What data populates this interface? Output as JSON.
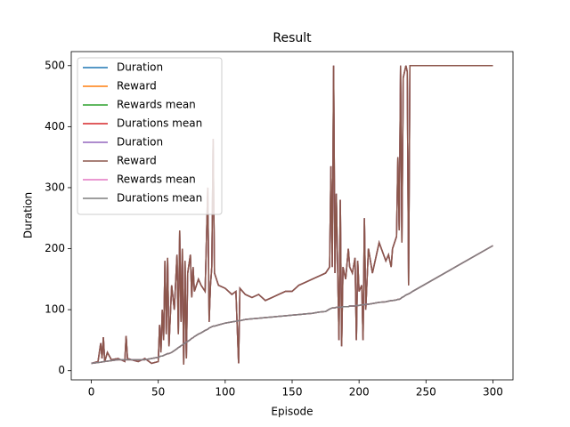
{
  "chart_data": {
    "type": "line",
    "title": "Result",
    "x_label": "Episode",
    "y_label": "Duration",
    "x": [
      0,
      5,
      7,
      8,
      9,
      10,
      12,
      15,
      20,
      25,
      26,
      27,
      30,
      35,
      40,
      45,
      50,
      51,
      52,
      53,
      54,
      55,
      56,
      57,
      58,
      60,
      62,
      64,
      65,
      66,
      67,
      68,
      69,
      70,
      71,
      72,
      74,
      75,
      76,
      77,
      80,
      82,
      85,
      87,
      88,
      89,
      90,
      91,
      92,
      95,
      100,
      105,
      108,
      110,
      111,
      115,
      120,
      125,
      130,
      135,
      140,
      145,
      150,
      155,
      160,
      165,
      170,
      175,
      178,
      179,
      180,
      181,
      182,
      183,
      184,
      185,
      186,
      187,
      188,
      190,
      192,
      193,
      195,
      197,
      198,
      199,
      200,
      202,
      203,
      204,
      205,
      207,
      210,
      215,
      220,
      222,
      224,
      225,
      228,
      229,
      230,
      231,
      232,
      233,
      235,
      236,
      237,
      238,
      240,
      300
    ],
    "series": [
      {
        "name": "Duration",
        "color": "#1f77b4",
        "values": [
          12,
          15,
          45,
          20,
          55,
          15,
          30,
          18,
          20,
          15,
          57,
          20,
          18,
          15,
          20,
          12,
          15,
          75,
          30,
          100,
          50,
          180,
          60,
          185,
          40,
          140,
          100,
          190,
          60,
          230,
          80,
          200,
          10,
          180,
          20,
          160,
          190,
          120,
          170,
          130,
          150,
          140,
          130,
          300,
          80,
          140,
          170,
          380,
          160,
          140,
          135,
          125,
          130,
          12,
          135,
          125,
          120,
          125,
          115,
          120,
          125,
          130,
          130,
          140,
          145,
          150,
          155,
          160,
          170,
          335,
          170,
          500,
          160,
          290,
          170,
          50,
          280,
          40,
          170,
          150,
          200,
          170,
          160,
          185,
          50,
          180,
          130,
          140,
          50,
          250,
          100,
          200,
          160,
          210,
          180,
          190,
          170,
          200,
          220,
          350,
          230,
          500,
          210,
          480,
          500,
          490,
          140,
          500,
          500,
          500
        ]
      },
      {
        "name": "Reward",
        "color": "#ff7f0e",
        "values": [
          12,
          15,
          45,
          20,
          55,
          15,
          30,
          18,
          20,
          15,
          57,
          20,
          18,
          15,
          20,
          12,
          15,
          75,
          30,
          100,
          50,
          180,
          60,
          185,
          40,
          140,
          100,
          190,
          60,
          230,
          80,
          200,
          10,
          180,
          20,
          160,
          190,
          120,
          170,
          130,
          150,
          140,
          130,
          300,
          80,
          140,
          170,
          380,
          160,
          140,
          135,
          125,
          130,
          12,
          135,
          125,
          120,
          125,
          115,
          120,
          125,
          130,
          130,
          140,
          145,
          150,
          155,
          160,
          170,
          335,
          170,
          500,
          160,
          290,
          170,
          50,
          280,
          40,
          170,
          150,
          200,
          170,
          160,
          185,
          50,
          180,
          130,
          140,
          50,
          250,
          100,
          200,
          160,
          210,
          180,
          190,
          170,
          200,
          220,
          350,
          230,
          500,
          210,
          480,
          500,
          490,
          140,
          500,
          500,
          500
        ]
      },
      {
        "name": "Rewards mean",
        "color": "#2ca02c",
        "values": [
          12,
          13.5,
          14,
          14.4,
          14.7,
          15,
          15.6,
          16.5,
          18,
          18,
          18,
          18,
          18,
          18,
          18,
          20,
          22,
          23,
          24,
          24,
          25,
          26,
          27,
          28,
          28,
          30,
          33,
          36,
          38,
          39,
          41,
          42,
          44,
          45,
          47,
          48,
          51,
          53,
          54,
          56,
          60,
          62,
          66,
          68,
          70,
          71,
          72,
          73,
          73,
          75,
          78,
          80,
          81,
          82,
          82,
          84,
          85,
          86,
          87,
          88,
          89,
          90,
          91,
          92,
          93,
          94,
          96,
          97,
          101,
          102,
          103,
          103,
          103,
          104,
          104,
          104,
          104,
          104,
          105,
          105,
          105,
          106,
          106,
          106,
          107,
          107,
          107,
          108,
          108,
          108,
          109,
          109,
          110,
          112,
          113,
          114,
          115,
          115,
          116,
          117,
          117,
          118,
          120,
          121,
          124,
          125,
          126,
          127,
          130,
          205
        ]
      },
      {
        "name": "Durations mean",
        "color": "#d62728",
        "values": [
          12,
          13.5,
          14,
          14.4,
          14.7,
          15,
          15.6,
          16.5,
          18,
          18,
          18,
          18,
          18,
          18,
          18,
          20,
          22,
          23,
          24,
          24,
          25,
          26,
          27,
          28,
          28,
          30,
          33,
          36,
          38,
          39,
          41,
          42,
          44,
          45,
          47,
          48,
          51,
          53,
          54,
          56,
          60,
          62,
          66,
          68,
          70,
          71,
          72,
          73,
          73,
          75,
          78,
          80,
          81,
          82,
          82,
          84,
          85,
          86,
          87,
          88,
          89,
          90,
          91,
          92,
          93,
          94,
          96,
          97,
          101,
          102,
          103,
          103,
          103,
          104,
          104,
          104,
          104,
          104,
          105,
          105,
          105,
          106,
          106,
          106,
          107,
          107,
          107,
          108,
          108,
          108,
          109,
          109,
          110,
          112,
          113,
          114,
          115,
          115,
          116,
          117,
          117,
          118,
          120,
          121,
          124,
          125,
          126,
          127,
          130,
          205
        ]
      },
      {
        "name": "Duration",
        "color": "#9467bd",
        "values": [
          12,
          15,
          45,
          20,
          55,
          15,
          30,
          18,
          20,
          15,
          57,
          20,
          18,
          15,
          20,
          12,
          15,
          75,
          30,
          100,
          50,
          180,
          60,
          185,
          40,
          140,
          100,
          190,
          60,
          230,
          80,
          200,
          10,
          180,
          20,
          160,
          190,
          120,
          170,
          130,
          150,
          140,
          130,
          300,
          80,
          140,
          170,
          380,
          160,
          140,
          135,
          125,
          130,
          12,
          135,
          125,
          120,
          125,
          115,
          120,
          125,
          130,
          130,
          140,
          145,
          150,
          155,
          160,
          170,
          335,
          170,
          500,
          160,
          290,
          170,
          50,
          280,
          40,
          170,
          150,
          200,
          170,
          160,
          185,
          50,
          180,
          130,
          140,
          50,
          250,
          100,
          200,
          160,
          210,
          180,
          190,
          170,
          200,
          220,
          350,
          230,
          500,
          210,
          480,
          500,
          490,
          140,
          500,
          500,
          500
        ]
      },
      {
        "name": "Reward",
        "color": "#8c564b",
        "values": [
          12,
          15,
          45,
          20,
          55,
          15,
          30,
          18,
          20,
          15,
          57,
          20,
          18,
          15,
          20,
          12,
          15,
          75,
          30,
          100,
          50,
          180,
          60,
          185,
          40,
          140,
          100,
          190,
          60,
          230,
          80,
          200,
          10,
          180,
          20,
          160,
          190,
          120,
          170,
          130,
          150,
          140,
          130,
          300,
          80,
          140,
          170,
          380,
          160,
          140,
          135,
          125,
          130,
          12,
          135,
          125,
          120,
          125,
          115,
          120,
          125,
          130,
          130,
          140,
          145,
          150,
          155,
          160,
          170,
          335,
          170,
          500,
          160,
          290,
          170,
          50,
          280,
          40,
          170,
          150,
          200,
          170,
          160,
          185,
          50,
          180,
          130,
          140,
          50,
          250,
          100,
          200,
          160,
          210,
          180,
          190,
          170,
          200,
          220,
          350,
          230,
          500,
          210,
          480,
          500,
          490,
          140,
          500,
          500,
          500
        ]
      },
      {
        "name": "Rewards mean",
        "color": "#e377c2",
        "values": [
          12,
          13.5,
          14,
          14.4,
          14.7,
          15,
          15.6,
          16.5,
          18,
          18,
          18,
          18,
          18,
          18,
          18,
          20,
          22,
          23,
          24,
          24,
          25,
          26,
          27,
          28,
          28,
          30,
          33,
          36,
          38,
          39,
          41,
          42,
          44,
          45,
          47,
          48,
          51,
          53,
          54,
          56,
          60,
          62,
          66,
          68,
          70,
          71,
          72,
          73,
          73,
          75,
          78,
          80,
          81,
          82,
          82,
          84,
          85,
          86,
          87,
          88,
          89,
          90,
          91,
          92,
          93,
          94,
          96,
          97,
          101,
          102,
          103,
          103,
          103,
          104,
          104,
          104,
          104,
          104,
          105,
          105,
          105,
          106,
          106,
          106,
          107,
          107,
          107,
          108,
          108,
          108,
          109,
          109,
          110,
          112,
          113,
          114,
          115,
          115,
          116,
          117,
          117,
          118,
          120,
          121,
          124,
          125,
          126,
          127,
          130,
          205
        ]
      },
      {
        "name": "Durations mean",
        "color": "#7f7f7f",
        "values": [
          12,
          13.5,
          14,
          14.4,
          14.7,
          15,
          15.6,
          16.5,
          18,
          18,
          18,
          18,
          18,
          18,
          18,
          20,
          22,
          23,
          24,
          24,
          25,
          26,
          27,
          28,
          28,
          30,
          33,
          36,
          38,
          39,
          41,
          42,
          44,
          45,
          47,
          48,
          51,
          53,
          54,
          56,
          60,
          62,
          66,
          68,
          70,
          71,
          72,
          73,
          73,
          75,
          78,
          80,
          81,
          82,
          82,
          84,
          85,
          86,
          87,
          88,
          89,
          90,
          91,
          92,
          93,
          94,
          96,
          97,
          101,
          102,
          103,
          103,
          103,
          104,
          104,
          104,
          104,
          104,
          105,
          105,
          105,
          106,
          106,
          106,
          107,
          107,
          107,
          108,
          108,
          108,
          109,
          109,
          110,
          112,
          113,
          114,
          115,
          115,
          116,
          117,
          117,
          118,
          120,
          121,
          124,
          125,
          126,
          127,
          130,
          205
        ]
      }
    ],
    "xlim": [
      -15,
      315
    ],
    "ylim": [
      -15,
      523
    ],
    "xticks": [
      0,
      50,
      100,
      150,
      200,
      250,
      300
    ],
    "yticks": [
      0,
      100,
      200,
      300,
      400,
      500
    ],
    "legend": "upper left",
    "grid": false
  }
}
